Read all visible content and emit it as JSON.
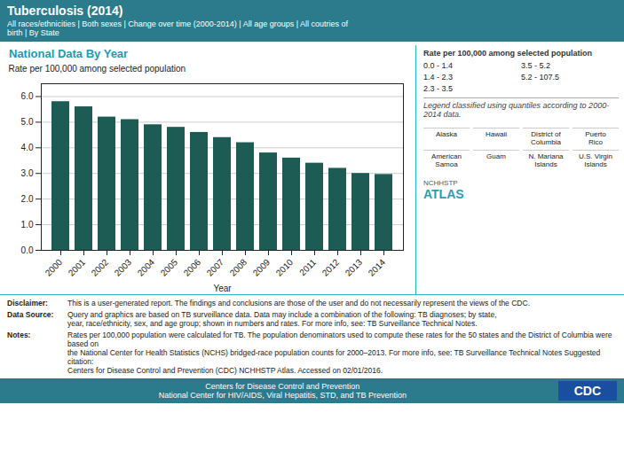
{
  "chart_data": {
    "type": "bar",
    "title": "Tuberculosis (2014)",
    "subtitle": "All races/ethnicities | Both sexes | Change over time (2000-2014) | All age groups | All coutries of\nbirth | By State",
    "categories": [
      "2000",
      "2001",
      "2002",
      "2003",
      "2004",
      "2005",
      "2006",
      "2007",
      "2008",
      "2009",
      "2010",
      "2011",
      "2012",
      "2013",
      "2014"
    ],
    "values": [
      5.8,
      5.6,
      5.2,
      5.1,
      4.9,
      4.8,
      4.6,
      4.4,
      4.2,
      3.8,
      3.6,
      3.4,
      3.2,
      3.0,
      2.96
    ],
    "color": "#1C5C55",
    "xlabel": "Year",
    "ylabel": "Rate per 100,000 among selected population",
    "ylim": [
      0,
      6.5
    ],
    "yticks": [
      {
        "value": 0,
        "label": "0.0"
      },
      {
        "value": 1,
        "label": "1.0"
      },
      {
        "value": 2,
        "label": "2.0"
      },
      {
        "value": 3,
        "label": "3.0"
      },
      {
        "value": 4,
        "label": "4.0"
      },
      {
        "value": 5,
        "label": "5.0"
      },
      {
        "value": 6,
        "label": "6.0"
      }
    ],
    "grid": true,
    "annotations": [
      "National Data By Year",
      "Rate per 100,000 among selected population",
      "0.0 - 1.4",
      "1.4 - 2.3",
      "2.3 - 3.5",
      "3.5 - 5.2",
      "5.2 - 107.5",
      "Legend classified using quantiles according to 2000-2014 data.",
      "Alaska",
      "Hawaii",
      "District of\nColumbia",
      "Puerto\nRico",
      "American\nSamoa",
      "Guam",
      "N. Mariana\nIslands",
      "U.S. Virgin\nIslands",
      "Disclaimer:",
      "This is a user-generated report. The findings and conclusions are those of the user and do not necessarily represent the views of the CDC.",
      "Data Source:",
      "Query and graphics are based on TB surveillance data. Data may include a combination of the following: TB diagnoses; by state,\nyear, race/ethnicity, sex, and age group; shown in numbers and rates. For more info, see: TB Surveillance Technical Notes.",
      "Notes:",
      "Rates per 100,000 population were calculated for TB. The population denominators used to compute these rates for the 50 states and the District of Columbia were based on\nthe National Center for Health Statistics (NCHS) bridged-race population counts for 2000–2013. For more info, see: TB Surveillance Technical Notes Suggested citation:\nCenters for Disease Control and Prevention (CDC) NCHHSTP Atlas. Accessed on 02/01/2016.",
      "Centers for Disease Control and Prevention",
      "National Center for HIV/AIDS, Viral Hepatitis, STD, and TB Prevention",
      "CDC",
      "NCHHSTP",
      "ATLAS"
    ]
  }
}
